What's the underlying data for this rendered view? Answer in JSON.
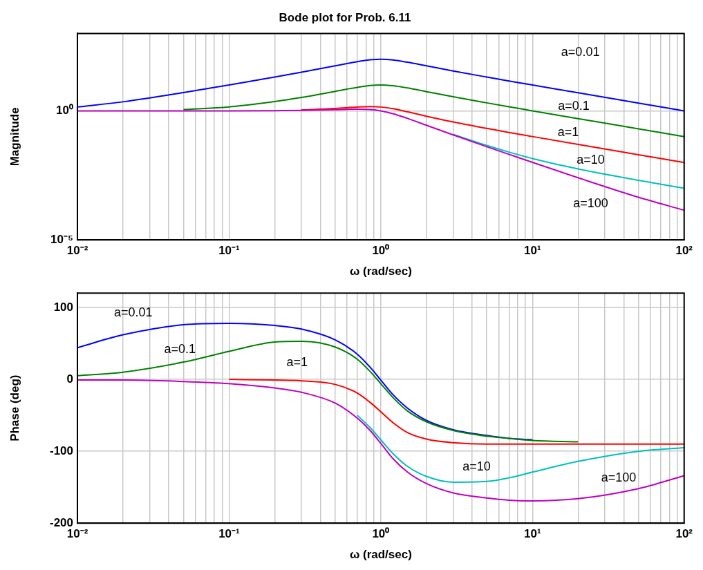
{
  "chart_data": [
    {
      "type": "line",
      "title": "Bode plot for Prob. 6.11",
      "xlabel": "ω (rad/sec)",
      "ylabel": "Magnitude",
      "log": "xy",
      "grid": true,
      "marker": "none",
      "line_style": "solid",
      "xlim": [
        0.01,
        100
      ],
      "ylim": [
        1e-05,
        1000
      ],
      "xticks": [
        {
          "value": 0.01,
          "label": "10⁻²"
        },
        {
          "value": 0.02,
          "label": null
        },
        {
          "value": 0.03,
          "label": null
        },
        {
          "value": 0.04,
          "label": null
        },
        {
          "value": 0.05,
          "label": null
        },
        {
          "value": 0.06,
          "label": null
        },
        {
          "value": 0.07,
          "label": null
        },
        {
          "value": 0.08,
          "label": null
        },
        {
          "value": 0.09,
          "label": null
        },
        {
          "value": 0.1,
          "label": "10⁻¹"
        },
        {
          "value": 0.2,
          "label": null
        },
        {
          "value": 0.3,
          "label": null
        },
        {
          "value": 0.4,
          "label": null
        },
        {
          "value": 0.5,
          "label": null
        },
        {
          "value": 0.6,
          "label": null
        },
        {
          "value": 0.7,
          "label": null
        },
        {
          "value": 0.8,
          "label": null
        },
        {
          "value": 0.9,
          "label": null
        },
        {
          "value": 1,
          "label": "10⁰"
        },
        {
          "value": 2,
          "label": null
        },
        {
          "value": 3,
          "label": null
        },
        {
          "value": 4,
          "label": null
        },
        {
          "value": 5,
          "label": null
        },
        {
          "value": 6,
          "label": null
        },
        {
          "value": 7,
          "label": null
        },
        {
          "value": 8,
          "label": null
        },
        {
          "value": 9,
          "label": null
        },
        {
          "value": 10,
          "label": "10¹"
        },
        {
          "value": 20,
          "label": null
        },
        {
          "value": 30,
          "label": null
        },
        {
          "value": 40,
          "label": null
        },
        {
          "value": 50,
          "label": null
        },
        {
          "value": 60,
          "label": null
        },
        {
          "value": 70,
          "label": null
        },
        {
          "value": 80,
          "label": null
        },
        {
          "value": 90,
          "label": null
        },
        {
          "value": 100,
          "label": "10²"
        }
      ],
      "yticks": [
        {
          "value": 1e-05,
          "label": "10⁻⁵"
        },
        {
          "value": 1,
          "label": "10⁰"
        }
      ],
      "x": [
        0.01,
        0.02,
        0.05,
        0.1,
        0.2,
        0.3,
        0.5,
        0.7,
        0.85,
        1,
        1.2,
        1.5,
        2,
        3,
        5,
        7,
        10,
        20,
        50,
        100
      ],
      "series": [
        {
          "name": "a=0.01",
          "color": "#0000ff",
          "values": [
            1.41,
            2.24,
            5.1,
            10.1,
            20.4,
            31.3,
            55.5,
            80.8,
            95.1,
            100,
            93.9,
            76.8,
            55.5,
            35.1,
            20.4,
            14.4,
            10.1,
            5.0,
            2.0,
            1.0
          ]
        },
        {
          "name": "a=0.1",
          "color": "#008000",
          "values": [
            null,
            null,
            1.12,
            1.42,
            2.28,
            3.3,
            5.66,
            8.16,
            9.57,
            10.1,
            9.42,
            7.7,
            5.55,
            3.51,
            2.04,
            1.44,
            1.0,
            0.5,
            0.2,
            0.1
          ]
        },
        {
          "name": "a=1",
          "color": "#ff0000",
          "values": [
            null,
            null,
            null,
            null,
            null,
            1.09,
            1.24,
            1.41,
            1.47,
            1.41,
            1.22,
            0.92,
            0.62,
            0.37,
            0.21,
            0.146,
            0.101,
            0.05,
            0.02,
            0.01
          ]
        },
        {
          "name": "a=10",
          "color": "#00bfbf",
          "values": [
            null,
            null,
            null,
            null,
            null,
            null,
            null,
            null,
            null,
            null,
            null,
            null,
            null,
            0.122,
            0.0456,
            0.0252,
            0.0142,
            0.0056,
            0.00204,
            0.001
          ]
        },
        {
          "name": "a=100",
          "color": "#bf00bf",
          "values": [
            1.0,
            1.0,
            1.0,
            1.0,
            1.02,
            1.04,
            1.11,
            1.16,
            1.12,
            1.0,
            0.78,
            0.51,
            0.277,
            0.117,
            0.0408,
            0.0207,
            0.0101,
            0.00255,
            0.000447,
            0.000141
          ]
        }
      ]
    },
    {
      "type": "line",
      "xlabel": "ω (rad/sec)",
      "ylabel": "Phase (deg)",
      "log": "x",
      "grid": true,
      "marker": "none",
      "line_style": "solid",
      "xlim": [
        0.01,
        100
      ],
      "ylim": [
        -200,
        120
      ],
      "xticks": [
        {
          "value": 0.01,
          "label": "10⁻²"
        },
        {
          "value": 0.02,
          "label": null
        },
        {
          "value": 0.03,
          "label": null
        },
        {
          "value": 0.04,
          "label": null
        },
        {
          "value": 0.05,
          "label": null
        },
        {
          "value": 0.06,
          "label": null
        },
        {
          "value": 0.07,
          "label": null
        },
        {
          "value": 0.08,
          "label": null
        },
        {
          "value": 0.09,
          "label": null
        },
        {
          "value": 0.1,
          "label": "10⁻¹"
        },
        {
          "value": 0.2,
          "label": null
        },
        {
          "value": 0.3,
          "label": null
        },
        {
          "value": 0.4,
          "label": null
        },
        {
          "value": 0.5,
          "label": null
        },
        {
          "value": 0.6,
          "label": null
        },
        {
          "value": 0.7,
          "label": null
        },
        {
          "value": 0.8,
          "label": null
        },
        {
          "value": 0.9,
          "label": null
        },
        {
          "value": 1,
          "label": "10⁰"
        },
        {
          "value": 2,
          "label": null
        },
        {
          "value": 3,
          "label": null
        },
        {
          "value": 4,
          "label": null
        },
        {
          "value": 5,
          "label": null
        },
        {
          "value": 6,
          "label": null
        },
        {
          "value": 7,
          "label": null
        },
        {
          "value": 8,
          "label": null
        },
        {
          "value": 9,
          "label": null
        },
        {
          "value": 10,
          "label": "10¹"
        },
        {
          "value": 20,
          "label": null
        },
        {
          "value": 30,
          "label": null
        },
        {
          "value": 40,
          "label": null
        },
        {
          "value": 50,
          "label": null
        },
        {
          "value": 60,
          "label": null
        },
        {
          "value": 70,
          "label": null
        },
        {
          "value": 80,
          "label": null
        },
        {
          "value": 90,
          "label": null
        },
        {
          "value": 100,
          "label": "10²"
        }
      ],
      "yticks": [
        -200,
        -100,
        0,
        100
      ],
      "x": [
        0.01,
        0.02,
        0.05,
        0.1,
        0.2,
        0.3,
        0.5,
        0.7,
        0.85,
        1,
        1.2,
        1.5,
        2,
        3,
        5,
        7,
        10,
        20,
        50,
        100
      ],
      "series": [
        {
          "name": "a=0.01",
          "color": "#0000ff",
          "values": [
            44,
            62,
            76,
            78,
            75,
            70,
            55,
            35,
            17,
            -1,
            -21,
            -40,
            -57,
            -70,
            -78,
            -82,
            -84,
            null,
            null,
            null
          ]
        },
        {
          "name": "a=0.1",
          "color": "#008000",
          "values": [
            5,
            10,
            24,
            39,
            52,
            53,
            45,
            28,
            11,
            -6,
            -25,
            -44,
            -59,
            -71,
            -79,
            -82,
            -85,
            -87,
            null,
            null
          ]
        },
        {
          "name": "a=1",
          "color": "#ff0000",
          "values": [
            null,
            null,
            null,
            0,
            -1,
            -2,
            -7,
            -19,
            -32,
            -45,
            -60,
            -74,
            -83,
            -88,
            -90,
            -90,
            -90,
            -90,
            -90,
            -90
          ]
        },
        {
          "name": "a=10",
          "color": "#00bfbf",
          "values": [
            null,
            null,
            null,
            null,
            null,
            null,
            null,
            -50,
            -67,
            -84,
            -103,
            -121,
            -135,
            -143,
            -142,
            -137,
            -129,
            -114,
            -100,
            -95
          ]
        },
        {
          "name": "a=100",
          "color": "#bf00bf",
          "values": [
            -1,
            -1,
            -3,
            -6,
            -12,
            -18,
            -33,
            -54,
            -71,
            -89,
            -110,
            -129,
            -145,
            -158,
            -165,
            -168,
            -169,
            -166,
            -152,
            -134
          ]
        }
      ]
    }
  ]
}
